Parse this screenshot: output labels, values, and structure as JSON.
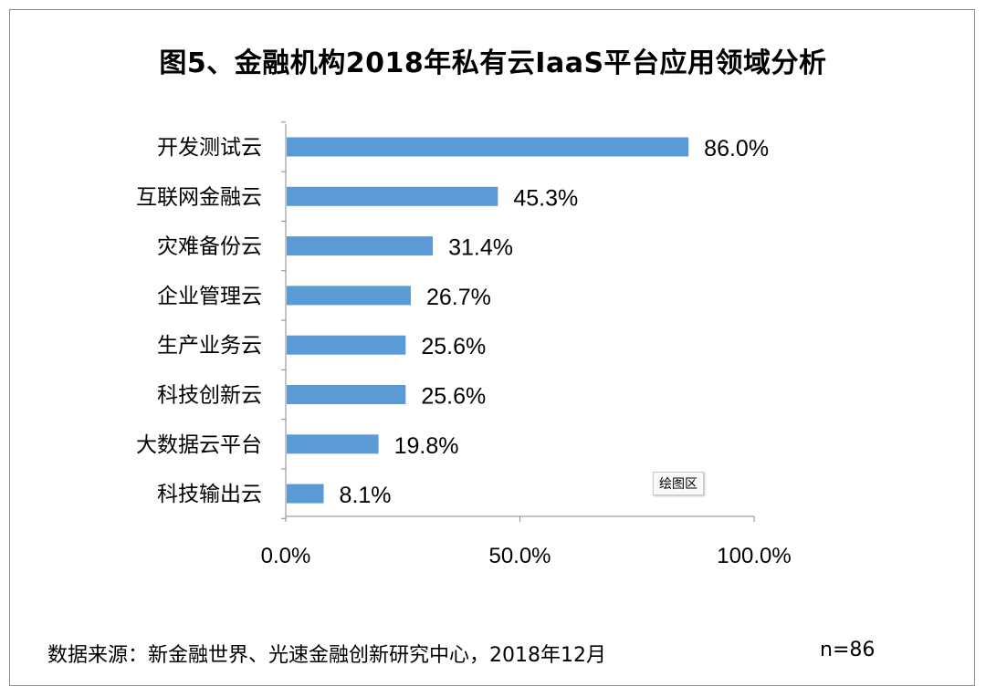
{
  "source_text": "数据来源：新金融世界、光速金融创新研究中心，2018年12月",
  "sample_size": "n=86",
  "tooltip": "绘图区",
  "chart_data": {
    "type": "bar",
    "orientation": "horizontal",
    "title": "图5、金融机构2018年私有云IaaS平台应用领域分析",
    "categories": [
      "开发测试云",
      "互联网金融云",
      "灾难备份云",
      "企业管理云",
      "生产业务云",
      "科技创新云",
      "大数据云平台",
      "科技输出云"
    ],
    "values": [
      86.0,
      45.3,
      31.4,
      26.7,
      25.6,
      25.6,
      19.8,
      8.1
    ],
    "value_labels": [
      "86.0%",
      "45.3%",
      "31.4%",
      "26.7%",
      "25.6%",
      "25.6%",
      "19.8%",
      "8.1%"
    ],
    "x_ticks": [
      0,
      50,
      100
    ],
    "x_tick_labels": [
      "0.0%",
      "50.0%",
      "100.0%"
    ],
    "xlim": [
      0,
      100
    ],
    "bar_color": "#5b9bd5",
    "grid": false,
    "legend": "none"
  }
}
